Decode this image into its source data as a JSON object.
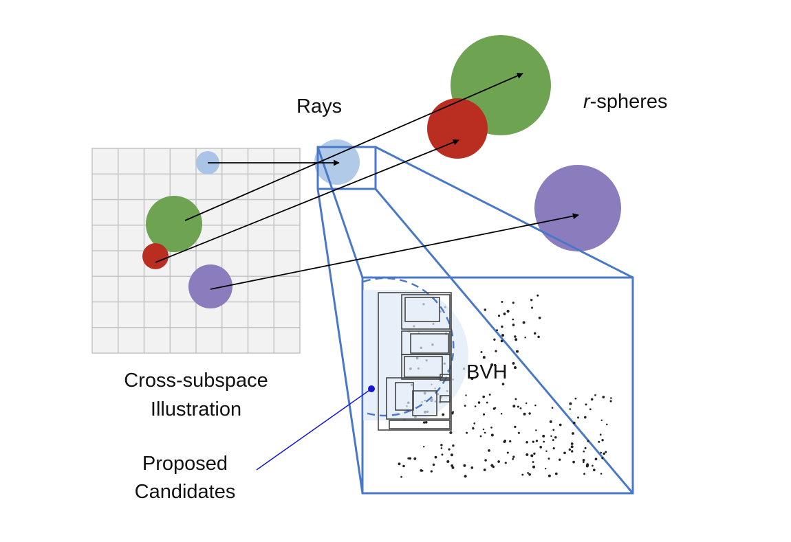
{
  "labels": {
    "rays": "Rays",
    "r_spheres_italic": "r",
    "r_spheres_rest": "-spheres",
    "grid_caption_line1": "Cross-subspace",
    "grid_caption_line2": "Illustration",
    "bvh": "BVH",
    "candidates_line1": "Proposed",
    "candidates_line2": "Candidates"
  },
  "colors": {
    "green": "#6ea352",
    "red": "#b92e21",
    "purple": "#8a7cbd",
    "light_blue": "#a9c4e6",
    "frame_blue": "#4a78c8",
    "grid_fill": "#f2f2f2",
    "grid_line": "#c4c4c4",
    "candidate_dot": "#1515d8"
  },
  "diagram": {
    "grid": {
      "rows": 8,
      "cols": 8
    },
    "ray_colors": [
      "light_blue",
      "green",
      "red",
      "purple"
    ]
  }
}
